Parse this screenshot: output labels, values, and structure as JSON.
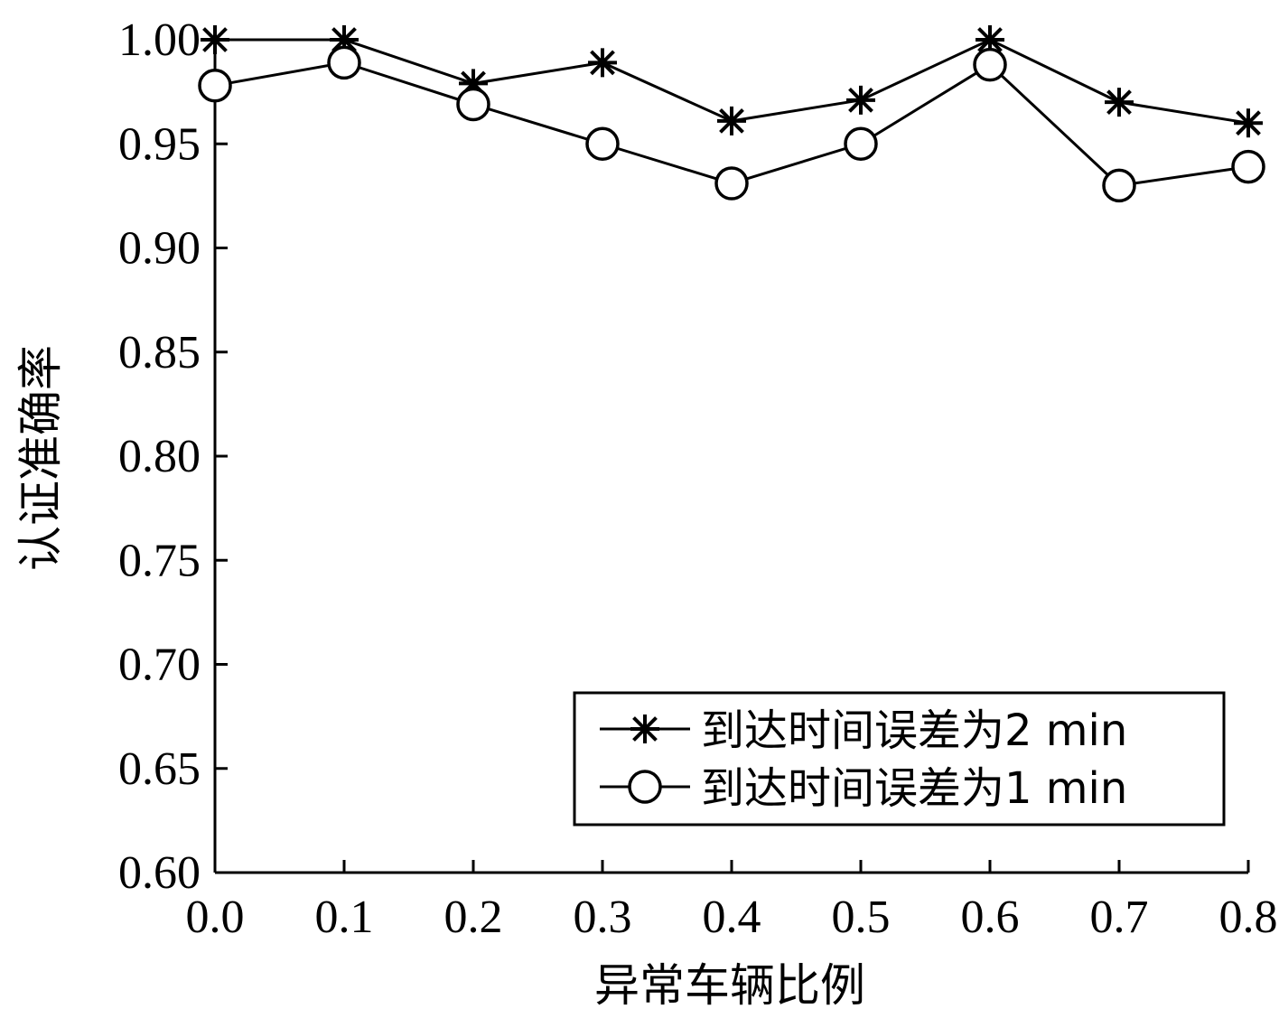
{
  "chart_data": {
    "type": "line",
    "xlabel": "异常车辆比例",
    "ylabel": "认证准确率",
    "xlim": [
      0.0,
      0.8
    ],
    "ylim": [
      0.6,
      1.0
    ],
    "xticks": [
      "0.0",
      "0.1",
      "0.2",
      "0.3",
      "0.4",
      "0.5",
      "0.6",
      "0.7",
      "0.8"
    ],
    "yticks": [
      "1.00",
      "0.95",
      "0.90",
      "0.85",
      "0.80",
      "0.75",
      "0.70",
      "0.65",
      "0.60"
    ],
    "grid": false,
    "legend_position": "bottom-right",
    "x": [
      0.0,
      0.1,
      0.2,
      0.3,
      0.4,
      0.5,
      0.6,
      0.7,
      0.8
    ],
    "series": [
      {
        "name": "到达时间误差为2 min",
        "marker": "asterisk",
        "values": [
          1.0,
          1.0,
          0.979,
          0.989,
          0.961,
          0.971,
          1.0,
          0.97,
          0.96
        ]
      },
      {
        "name": "到达时间误差为1 min",
        "marker": "circle",
        "values": [
          0.978,
          0.989,
          0.969,
          0.95,
          0.931,
          0.95,
          0.988,
          0.93,
          0.939
        ]
      }
    ]
  }
}
